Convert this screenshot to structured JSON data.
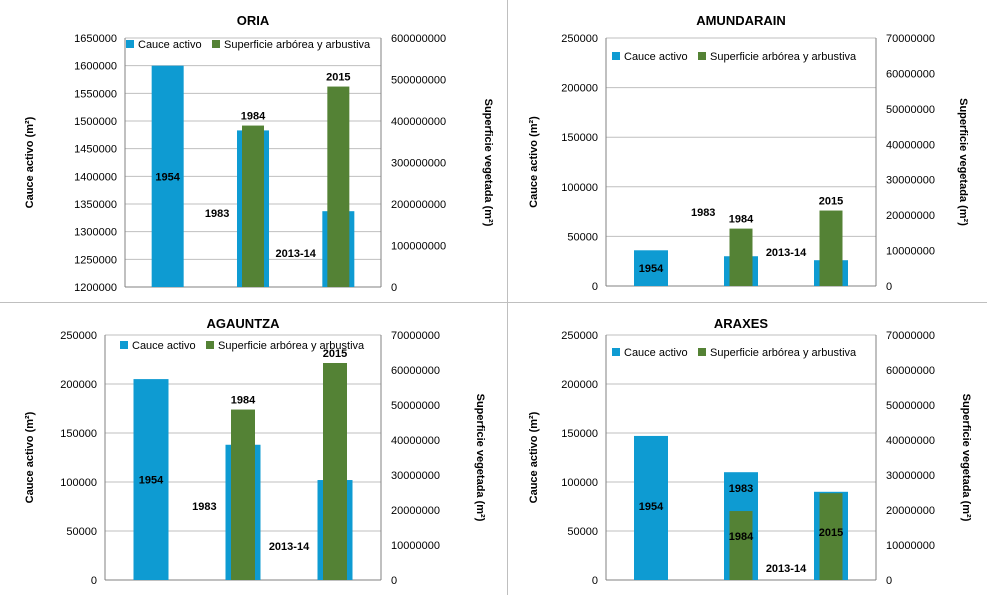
{
  "chart_data": [
    {
      "type": "bar",
      "title": "ORIA",
      "ylabel": "Cauce activo (m²)",
      "y2label": "Superficie vegetada (m²)",
      "ylim": [
        1200000,
        1650000
      ],
      "yticks": [
        1200000,
        1250000,
        1300000,
        1350000,
        1400000,
        1450000,
        1500000,
        1550000,
        1600000,
        1650000
      ],
      "y2lim": [
        0,
        600000000
      ],
      "y2ticks": [
        0,
        100000000,
        200000000,
        300000000,
        400000000,
        500000000,
        600000000
      ],
      "legend_position": "top",
      "grid": true,
      "series": [
        {
          "name": "Cauce activo",
          "color": "#0e9bd2",
          "axis": "left",
          "values": [
            1600000,
            1483000,
            1337000
          ],
          "labels": [
            "1954",
            "1983",
            "2013-14"
          ]
        },
        {
          "name": "Superficie arbórea y arbustiva",
          "color": "#548235",
          "axis": "right",
          "values": [
            null,
            389000000,
            483000000
          ],
          "labels": [
            "",
            "1984",
            "2015"
          ]
        }
      ]
    },
    {
      "type": "bar",
      "title": "AMUNDARAIN",
      "ylabel": "Cauce activo (m²)",
      "y2label": "Superficie vegetada (m²)",
      "ylim": [
        0,
        250000
      ],
      "yticks": [
        0,
        50000,
        100000,
        150000,
        200000,
        250000
      ],
      "y2lim": [
        0,
        70000000
      ],
      "y2ticks": [
        0,
        10000000,
        20000000,
        30000000,
        40000000,
        50000000,
        60000000,
        70000000
      ],
      "legend_position": "top",
      "grid": true,
      "series": [
        {
          "name": "Cauce activo",
          "color": "#0e9bd2",
          "axis": "left",
          "values": [
            36000,
            30000,
            26000
          ],
          "labels": [
            "1954",
            "1983",
            "2013-14"
          ]
        },
        {
          "name": "Superficie arbórea y arbustiva",
          "color": "#548235",
          "axis": "right",
          "values": [
            null,
            16200000,
            21300000
          ],
          "labels": [
            "",
            "1984",
            "2015"
          ]
        }
      ]
    },
    {
      "type": "bar",
      "title": "AGAUNTZA",
      "ylabel": "Cauce activo (m²)",
      "y2label": "Superficie vegetada (m²)",
      "ylim": [
        0,
        250000
      ],
      "yticks": [
        0,
        50000,
        100000,
        150000,
        200000,
        250000
      ],
      "y2lim": [
        0,
        70000000
      ],
      "y2ticks": [
        0,
        10000000,
        20000000,
        30000000,
        40000000,
        50000000,
        60000000,
        70000000
      ],
      "legend_position": "top",
      "grid": true,
      "series": [
        {
          "name": "Cauce activo",
          "color": "#0e9bd2",
          "axis": "left",
          "values": [
            205000,
            138000,
            102000
          ],
          "labels": [
            "1954",
            "1983",
            "2013-14"
          ]
        },
        {
          "name": "Superficie arbórea y arbustiva",
          "color": "#548235",
          "axis": "right",
          "values": [
            null,
            48700000,
            62000000
          ],
          "labels": [
            "",
            "1984",
            "2015"
          ]
        }
      ]
    },
    {
      "type": "bar",
      "title": "ARAXES",
      "ylabel": "Cauce activo (m²)",
      "y2label": "Superficie vegetada (m²)",
      "ylim": [
        0,
        250000
      ],
      "yticks": [
        0,
        50000,
        100000,
        150000,
        200000,
        250000
      ],
      "y2lim": [
        0,
        70000000
      ],
      "y2ticks": [
        0,
        10000000,
        20000000,
        30000000,
        40000000,
        50000000,
        60000000,
        70000000
      ],
      "legend_position": "top",
      "grid": true,
      "series": [
        {
          "name": "Cauce activo",
          "color": "#0e9bd2",
          "axis": "left",
          "values": [
            147000,
            110000,
            90000
          ],
          "labels": [
            "1954",
            "1983",
            "2013-14"
          ]
        },
        {
          "name": "Superficie arbórea y arbustiva",
          "color": "#548235",
          "axis": "right",
          "values": [
            null,
            19700000,
            24800000
          ],
          "labels": [
            "",
            "1984",
            "2015"
          ]
        }
      ]
    }
  ]
}
